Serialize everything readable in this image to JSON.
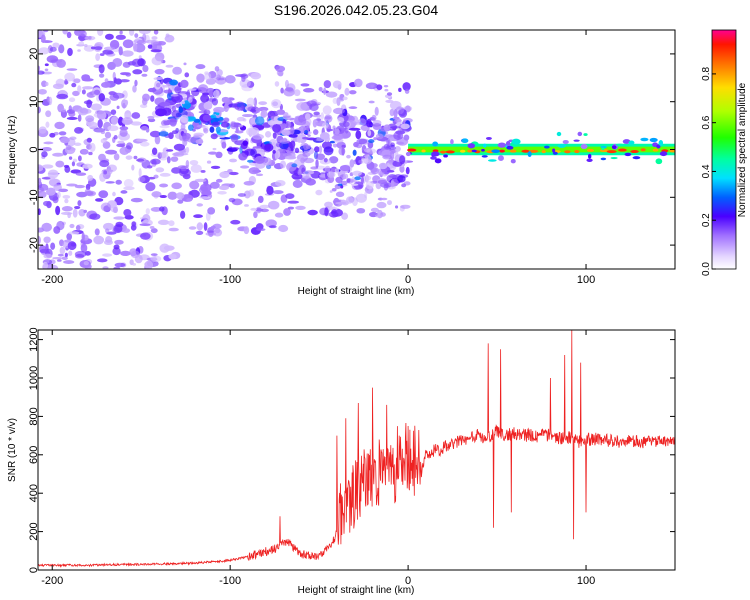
{
  "title": "S196.2026.042.05.23.G04",
  "chart_data": [
    {
      "type": "heatmap",
      "xlabel": "Height of straight line (km)",
      "ylabel": "Frequency (Hz)",
      "xlim": [
        -208,
        150
      ],
      "ylim": [
        -25,
        25
      ],
      "xticks": [
        -200,
        -100,
        0,
        100
      ],
      "xtick_labels": [
        "-200",
        "-100",
        "0",
        "100"
      ],
      "yticks": [
        -20,
        -10,
        0,
        10,
        20
      ],
      "ytick_labels": [
        "-20",
        "-10",
        "0",
        "10",
        "20"
      ],
      "ridge": [
        {
          "x": -135,
          "freq": 9,
          "amp": 0.3
        },
        {
          "x": -120,
          "freq": 7.5,
          "amp": 0.28
        },
        {
          "x": -105,
          "freq": 5.5,
          "amp": 0.25
        },
        {
          "x": -90,
          "freq": 3.5,
          "amp": 0.2
        },
        {
          "x": -75,
          "freq": 2,
          "amp": 0.18
        },
        {
          "x": -50,
          "freq": 1,
          "amp": 0.18
        },
        {
          "x": -25,
          "freq": 0,
          "amp": 0.15
        },
        {
          "x": -5,
          "freq": 0,
          "amp": 0.12
        },
        {
          "x": 5,
          "freq": -0.5,
          "amp": 0.85
        },
        {
          "x": 50,
          "freq": -0.5,
          "amp": 0.75
        },
        {
          "x": 90,
          "freq": 0,
          "amp": 0.6
        },
        {
          "x": 150,
          "freq": 0,
          "amp": 0.85
        }
      ],
      "colorbar": {
        "label": "Normalized spectral amplitude",
        "ticks": [
          0.0,
          0.2,
          0.4,
          0.6,
          0.8
        ],
        "tick_labels": [
          "0.0",
          "0.2",
          "0.4",
          "0.6",
          "0.8"
        ],
        "range": [
          0,
          0.98
        ]
      }
    },
    {
      "type": "line",
      "xlabel": "Height of straight line (km)",
      "ylabel": "SNR (10 * v/v)",
      "xlim": [
        -208,
        150
      ],
      "ylim": [
        0,
        1250
      ],
      "xticks": [
        -200,
        -100,
        0,
        100
      ],
      "xtick_labels": [
        "-200",
        "-100",
        "0",
        "100"
      ],
      "yticks": [
        0,
        200,
        400,
        600,
        800,
        1000,
        1200
      ],
      "ytick_labels": [
        "0",
        "200",
        "400",
        "600",
        "800",
        "1000",
        "1200"
      ],
      "series": [
        {
          "name": "SNR",
          "color": "#ee2222",
          "x": [
            -208,
            -180,
            -150,
            -120,
            -100,
            -85,
            -75,
            -68,
            -60,
            -50,
            -42,
            -35,
            -30,
            -25,
            -20,
            -15,
            -10,
            -5,
            0,
            5,
            8,
            10,
            15,
            20,
            25,
            30,
            40,
            45,
            50,
            55,
            60,
            70,
            80,
            85,
            90,
            95,
            100,
            110,
            120,
            130,
            140,
            150
          ],
          "y": [
            25,
            25,
            30,
            35,
            50,
            80,
            110,
            150,
            80,
            70,
            150,
            300,
            400,
            450,
            480,
            500,
            520,
            540,
            560,
            570,
            540,
            600,
            620,
            640,
            660,
            680,
            700,
            690,
            720,
            700,
            710,
            700,
            700,
            690,
            690,
            670,
            680,
            680,
            670,
            670,
            670,
            670
          ],
          "spikes": [
            {
              "x": -72,
              "y": 280
            },
            {
              "x": -40,
              "y": 700
            },
            {
              "x": -35,
              "y": 790
            },
            {
              "x": -28,
              "y": 870
            },
            {
              "x": -20,
              "y": 950
            },
            {
              "x": -12,
              "y": 860
            },
            {
              "x": -5,
              "y": 700
            },
            {
              "x": 0,
              "y": 750
            },
            {
              "x": 45,
              "y": 1180
            },
            {
              "x": 48,
              "y": 220
            },
            {
              "x": 52,
              "y": 1150
            },
            {
              "x": 58,
              "y": 300
            },
            {
              "x": 80,
              "y": 1000
            },
            {
              "x": 88,
              "y": 1120
            },
            {
              "x": 92,
              "y": 1250
            },
            {
              "x": 93,
              "y": 160
            },
            {
              "x": 97,
              "y": 1080
            },
            {
              "x": 100,
              "y": 300
            }
          ]
        }
      ]
    }
  ]
}
